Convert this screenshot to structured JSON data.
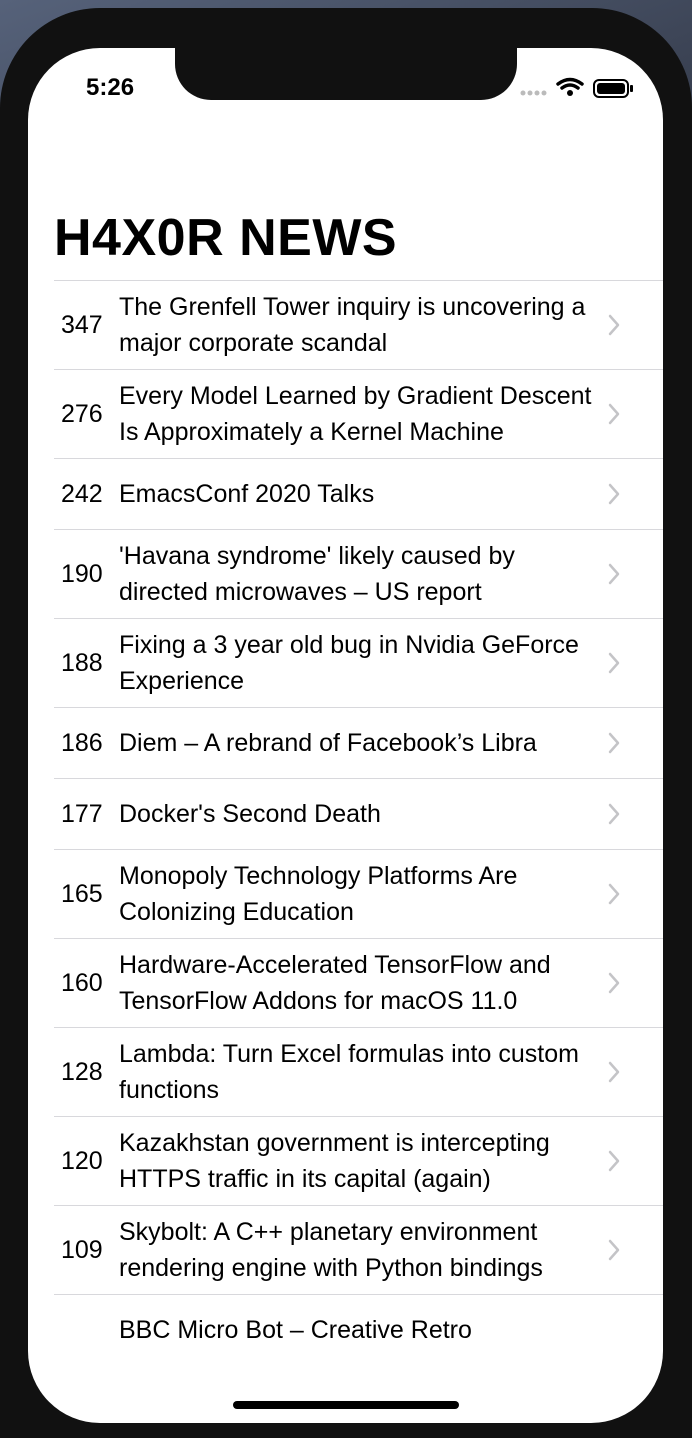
{
  "status": {
    "time": "5:26"
  },
  "header": {
    "title": "H4X0R NEWS"
  },
  "items": [
    {
      "score": 347,
      "title": "The Grenfell Tower inquiry is uncovering a major corporate scandal"
    },
    {
      "score": 276,
      "title": "Every Model Learned by Gradient Descent Is Approximately a Kernel Machine"
    },
    {
      "score": 242,
      "title": "EmacsConf 2020 Talks"
    },
    {
      "score": 190,
      "title": "'Havana syndrome' likely caused by directed microwaves – US report"
    },
    {
      "score": 188,
      "title": "Fixing a 3 year old bug in Nvidia GeForce Experience"
    },
    {
      "score": 186,
      "title": "Diem – A rebrand of Facebook’s Libra"
    },
    {
      "score": 177,
      "title": "Docker's Second Death"
    },
    {
      "score": 165,
      "title": "Monopoly Technology Platforms Are Colonizing Education"
    },
    {
      "score": 160,
      "title": "Hardware-Accelerated TensorFlow and TensorFlow Addons for macOS 11.0"
    },
    {
      "score": 128,
      "title": "Lambda: Turn Excel formulas into custom functions"
    },
    {
      "score": 120,
      "title": "Kazakhstan government is intercepting HTTPS traffic in its capital (again)"
    },
    {
      "score": 109,
      "title": "Skybolt: A C++ planetary environment rendering engine with Python bindings"
    }
  ],
  "cut_off_item": {
    "title": "BBC Micro Bot – Creative Retro"
  }
}
